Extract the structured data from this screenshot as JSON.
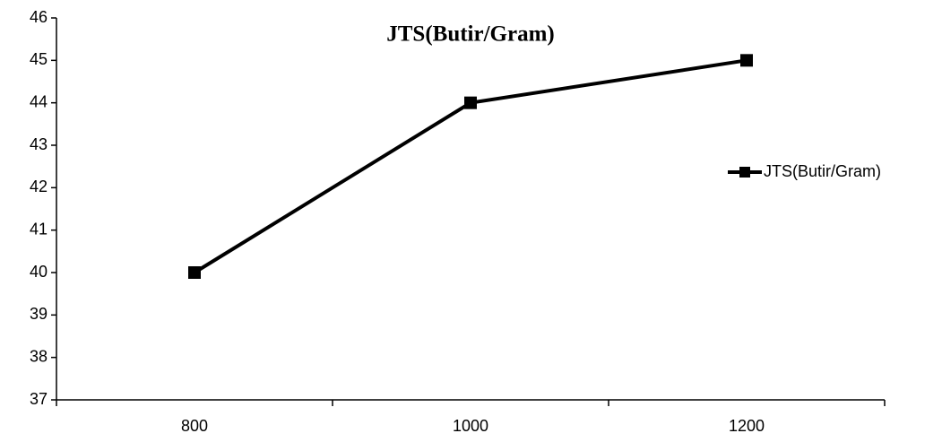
{
  "chart_data": {
    "type": "line",
    "title": "JTS(Butir/Gram)",
    "categories": [
      "800",
      "1000",
      "1200"
    ],
    "series": [
      {
        "name": "JTS(Butir/Gram)",
        "color": "#000000",
        "values": [
          40,
          44,
          45
        ]
      }
    ],
    "ylim": [
      37,
      46
    ],
    "yticks": [
      37,
      38,
      39,
      40,
      41,
      42,
      43,
      44,
      45,
      46
    ],
    "grid": false,
    "legend": "right",
    "marker": "square"
  }
}
